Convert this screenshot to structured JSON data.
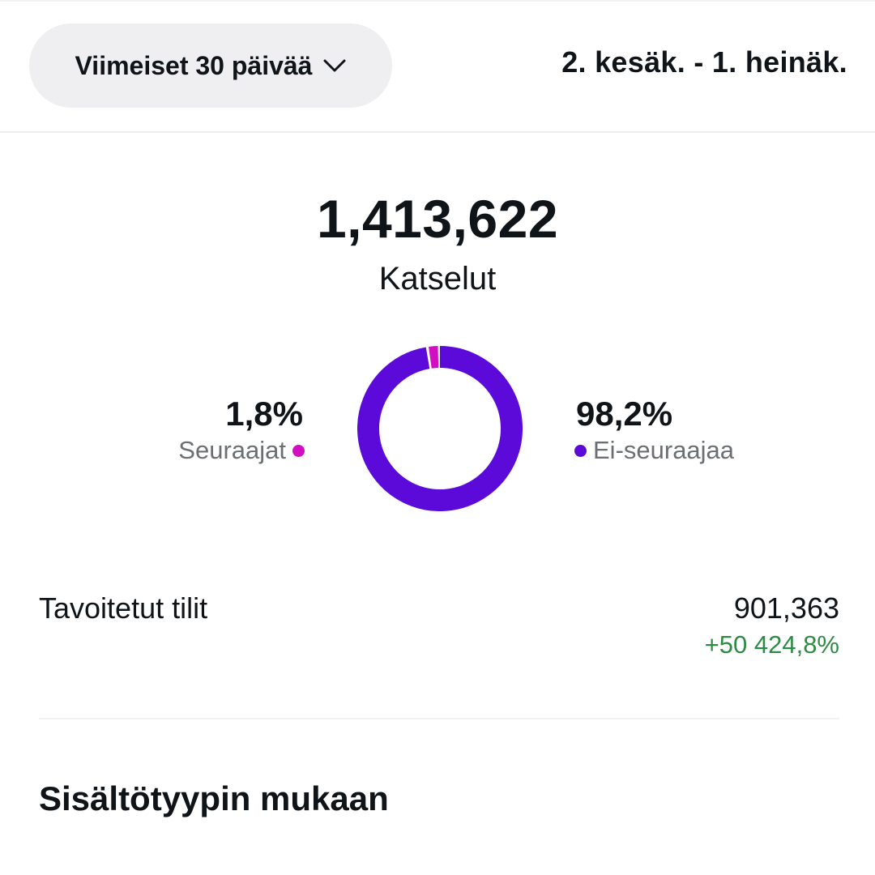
{
  "header": {
    "period_label": "Viimeiset 30 päivää",
    "period_icon": "chevron-down-icon",
    "date_range": "2. kesäk. - 1. heinäk."
  },
  "summary": {
    "total_value": "1,413,622",
    "total_label": "Katselut"
  },
  "audience": {
    "followers": {
      "percent": "1,8%",
      "label": "Seuraajat",
      "color": "#d10fc1",
      "share": 0.018
    },
    "non_followers": {
      "percent": "98,2%",
      "label": "Ei-seuraajaa",
      "color": "#5b0ad9",
      "share": 0.982
    }
  },
  "reach": {
    "label": "Tavoitetut tilit",
    "value": "901,363",
    "change": "+50 424,8%",
    "change_color": "#2e8b46"
  },
  "sections": {
    "content_type_title": "Sisältötyypin mukaan"
  }
}
